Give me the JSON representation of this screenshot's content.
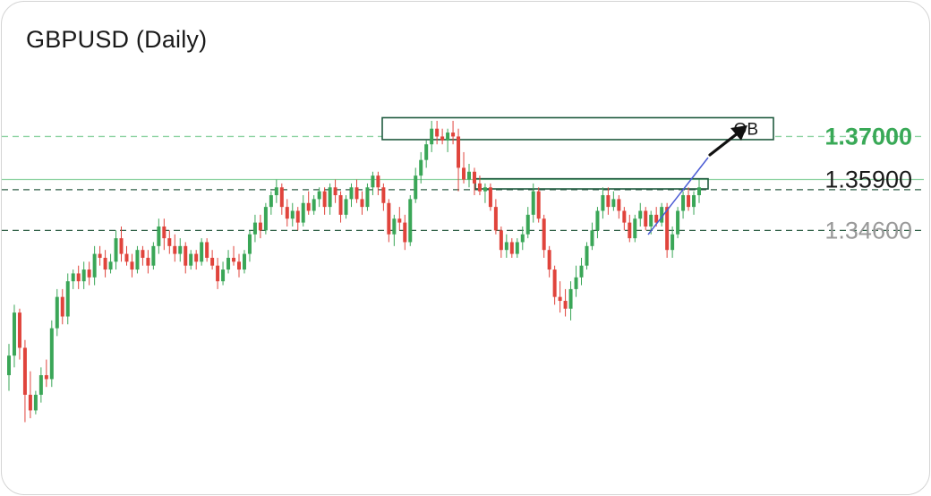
{
  "chart_data": {
    "type": "candlestick",
    "title": "GBPUSD (Daily)",
    "xlabel": "",
    "ylabel": "",
    "ylim": [
      1.293,
      1.382
    ],
    "grid": false,
    "levels": [
      {
        "label": "1.37000",
        "value": 1.37,
        "color": "#39a957",
        "line_color": "#8dd3a1",
        "dashed": true
      },
      {
        "label": "1.35900",
        "value": 1.359,
        "color": "#1a1a1a",
        "line_color": "#8dd3a1",
        "dashed": false
      },
      {
        "label": "1.34600",
        "value": 1.346,
        "color": "#999999",
        "line_color": "#2e5e45",
        "dashed": true
      }
    ],
    "extra_lines": [
      {
        "value": 1.3564,
        "color": "#2e5e45",
        "dashed": true
      }
    ],
    "annotations": [
      {
        "type": "box",
        "label": "OB",
        "from_bar": 98,
        "to_bar": 200,
        "y_top": 1.3748,
        "y_bottom": 1.3692
      },
      {
        "type": "box",
        "label": "",
        "from_bar": 124,
        "to_bar": 185,
        "y_top": 1.3592,
        "y_bottom": 1.3566
      },
      {
        "type": "trendline",
        "from_bar": 168,
        "from_value": 1.337,
        "to_bar": 185,
        "to_value": 1.358
      },
      {
        "type": "arrow",
        "from_bar": 185,
        "from_value": 1.359,
        "to_bar": 197,
        "to_value": 1.3668
      }
    ],
    "candles_ohlc": [
      [
        1.309,
        1.317,
        1.305,
        1.314
      ],
      [
        1.314,
        1.327,
        1.311,
        1.325
      ],
      [
        1.325,
        1.326,
        1.313,
        1.316
      ],
      [
        1.316,
        1.318,
        1.297,
        1.304
      ],
      [
        1.304,
        1.31,
        1.298,
        1.3
      ],
      [
        1.3,
        1.305,
        1.299,
        1.304
      ],
      [
        1.304,
        1.311,
        1.302,
        1.309
      ],
      [
        1.309,
        1.313,
        1.306,
        1.308
      ],
      [
        1.308,
        1.323,
        1.306,
        1.321
      ],
      [
        1.321,
        1.331,
        1.319,
        1.329
      ],
      [
        1.329,
        1.331,
        1.322,
        1.324
      ],
      [
        1.324,
        1.335,
        1.322,
        1.333
      ],
      [
        1.333,
        1.336,
        1.331,
        1.335
      ],
      [
        1.335,
        1.337,
        1.331,
        1.333
      ],
      [
        1.333,
        1.338,
        1.331,
        1.336
      ],
      [
        1.336,
        1.338,
        1.332,
        1.334
      ],
      [
        1.334,
        1.342,
        1.332,
        1.34
      ],
      [
        1.34,
        1.342,
        1.337,
        1.339
      ],
      [
        1.339,
        1.341,
        1.334,
        1.336
      ],
      [
        1.336,
        1.34,
        1.335,
        1.338
      ],
      [
        1.338,
        1.346,
        1.336,
        1.344
      ],
      [
        1.344,
        1.347,
        1.338,
        1.34
      ],
      [
        1.34,
        1.342,
        1.337,
        1.338
      ],
      [
        1.338,
        1.34,
        1.334,
        1.336
      ],
      [
        1.336,
        1.342,
        1.335,
        1.341
      ],
      [
        1.341,
        1.342,
        1.337,
        1.339
      ],
      [
        1.339,
        1.341,
        1.335,
        1.337
      ],
      [
        1.337,
        1.343,
        1.336,
        1.342
      ],
      [
        1.342,
        1.349,
        1.34,
        1.347
      ],
      [
        1.347,
        1.349,
        1.341,
        1.344
      ],
      [
        1.344,
        1.346,
        1.34,
        1.342
      ],
      [
        1.342,
        1.345,
        1.338,
        1.34
      ],
      [
        1.34,
        1.344,
        1.338,
        1.342
      ],
      [
        1.342,
        1.343,
        1.335,
        1.337
      ],
      [
        1.337,
        1.341,
        1.336,
        1.34
      ],
      [
        1.34,
        1.341,
        1.336,
        1.338
      ],
      [
        1.338,
        1.344,
        1.337,
        1.343
      ],
      [
        1.343,
        1.344,
        1.338,
        1.339
      ],
      [
        1.339,
        1.341,
        1.336,
        1.337
      ],
      [
        1.337,
        1.339,
        1.331,
        1.333
      ],
      [
        1.333,
        1.338,
        1.332,
        1.336
      ],
      [
        1.336,
        1.341,
        1.335,
        1.339
      ],
      [
        1.339,
        1.342,
        1.337,
        1.338
      ],
      [
        1.338,
        1.34,
        1.334,
        1.336
      ],
      [
        1.336,
        1.341,
        1.335,
        1.34
      ],
      [
        1.34,
        1.346,
        1.338,
        1.345
      ],
      [
        1.345,
        1.35,
        1.343,
        1.348
      ],
      [
        1.348,
        1.35,
        1.344,
        1.346
      ],
      [
        1.346,
        1.353,
        1.345,
        1.352
      ],
      [
        1.352,
        1.356,
        1.35,
        1.355
      ],
      [
        1.355,
        1.359,
        1.353,
        1.357
      ],
      [
        1.357,
        1.358,
        1.35,
        1.352
      ],
      [
        1.352,
        1.354,
        1.347,
        1.349
      ],
      [
        1.349,
        1.353,
        1.347,
        1.351
      ],
      [
        1.351,
        1.352,
        1.346,
        1.348
      ],
      [
        1.348,
        1.355,
        1.347,
        1.353
      ],
      [
        1.353,
        1.356,
        1.35,
        1.351
      ],
      [
        1.351,
        1.355,
        1.35,
        1.354
      ],
      [
        1.354,
        1.357,
        1.352,
        1.356
      ],
      [
        1.356,
        1.357,
        1.35,
        1.352
      ],
      [
        1.352,
        1.358,
        1.35,
        1.357
      ],
      [
        1.357,
        1.359,
        1.353,
        1.355
      ],
      [
        1.355,
        1.356,
        1.348,
        1.35
      ],
      [
        1.35,
        1.355,
        1.349,
        1.354
      ],
      [
        1.354,
        1.358,
        1.352,
        1.357
      ],
      [
        1.357,
        1.359,
        1.353,
        1.354
      ],
      [
        1.354,
        1.356,
        1.35,
        1.352
      ],
      [
        1.352,
        1.358,
        1.351,
        1.357
      ],
      [
        1.357,
        1.361,
        1.355,
        1.36
      ],
      [
        1.36,
        1.361,
        1.355,
        1.357
      ],
      [
        1.357,
        1.358,
        1.351,
        1.353
      ],
      [
        1.353,
        1.354,
        1.343,
        1.345
      ],
      [
        1.345,
        1.35,
        1.342,
        1.349
      ],
      [
        1.349,
        1.352,
        1.346,
        1.348
      ],
      [
        1.348,
        1.35,
        1.341,
        1.343
      ],
      [
        1.343,
        1.355,
        1.342,
        1.354
      ],
      [
        1.354,
        1.362,
        1.353,
        1.36
      ],
      [
        1.36,
        1.366,
        1.358,
        1.364
      ],
      [
        1.364,
        1.369,
        1.362,
        1.368
      ],
      [
        1.368,
        1.374,
        1.366,
        1.372
      ],
      [
        1.372,
        1.374,
        1.368,
        1.37
      ],
      [
        1.37,
        1.372,
        1.368,
        1.369
      ],
      [
        1.369,
        1.372,
        1.366,
        1.371
      ],
      [
        1.371,
        1.374,
        1.368,
        1.37
      ],
      [
        1.37,
        1.372,
        1.356,
        1.362
      ],
      [
        1.362,
        1.366,
        1.358,
        1.359
      ],
      [
        1.359,
        1.363,
        1.357,
        1.361
      ],
      [
        1.361,
        1.362,
        1.355,
        1.358
      ],
      [
        1.358,
        1.36,
        1.355,
        1.356
      ],
      [
        1.356,
        1.358,
        1.353,
        1.357
      ],
      [
        1.357,
        1.358,
        1.351,
        1.352
      ],
      [
        1.352,
        1.354,
        1.345,
        1.346
      ],
      [
        1.346,
        1.347,
        1.339,
        1.341
      ],
      [
        1.341,
        1.345,
        1.339,
        1.343
      ],
      [
        1.343,
        1.344,
        1.339,
        1.34
      ],
      [
        1.34,
        1.344,
        1.339,
        1.343
      ],
      [
        1.343,
        1.347,
        1.341,
        1.345
      ],
      [
        1.345,
        1.352,
        1.344,
        1.35
      ],
      [
        1.35,
        1.358,
        1.348,
        1.356
      ],
      [
        1.356,
        1.357,
        1.348,
        1.349
      ],
      [
        1.349,
        1.35,
        1.339,
        1.341
      ],
      [
        1.341,
        1.342,
        1.334,
        1.336
      ],
      [
        1.336,
        1.337,
        1.327,
        1.329
      ],
      [
        1.329,
        1.333,
        1.325,
        1.328
      ],
      [
        1.328,
        1.331,
        1.324,
        1.326
      ],
      [
        1.326,
        1.333,
        1.323,
        1.331
      ],
      [
        1.331,
        1.337,
        1.329,
        1.334
      ],
      [
        1.334,
        1.339,
        1.332,
        1.337
      ],
      [
        1.337,
        1.343,
        1.336,
        1.342
      ],
      [
        1.342,
        1.348,
        1.341,
        1.346
      ],
      [
        1.346,
        1.352,
        1.344,
        1.351
      ],
      [
        1.351,
        1.357,
        1.349,
        1.355
      ],
      [
        1.355,
        1.357,
        1.35,
        1.352
      ],
      [
        1.352,
        1.356,
        1.351,
        1.354
      ],
      [
        1.354,
        1.355,
        1.349,
        1.351
      ],
      [
        1.351,
        1.352,
        1.346,
        1.348
      ],
      [
        1.348,
        1.35,
        1.343,
        1.344
      ],
      [
        1.344,
        1.35,
        1.343,
        1.349
      ],
      [
        1.349,
        1.353,
        1.347,
        1.351
      ],
      [
        1.351,
        1.352,
        1.346,
        1.347
      ],
      [
        1.347,
        1.351,
        1.345,
        1.35
      ],
      [
        1.35,
        1.352,
        1.347,
        1.348
      ],
      [
        1.348,
        1.353,
        1.347,
        1.352
      ],
      [
        1.352,
        1.353,
        1.339,
        1.341
      ],
      [
        1.341,
        1.347,
        1.339,
        1.345
      ],
      [
        1.345,
        1.352,
        1.344,
        1.351
      ],
      [
        1.351,
        1.356,
        1.349,
        1.355
      ],
      [
        1.355,
        1.357,
        1.351,
        1.352
      ],
      [
        1.352,
        1.356,
        1.35,
        1.355
      ],
      [
        1.355,
        1.359,
        1.353,
        1.357
      ]
    ]
  }
}
